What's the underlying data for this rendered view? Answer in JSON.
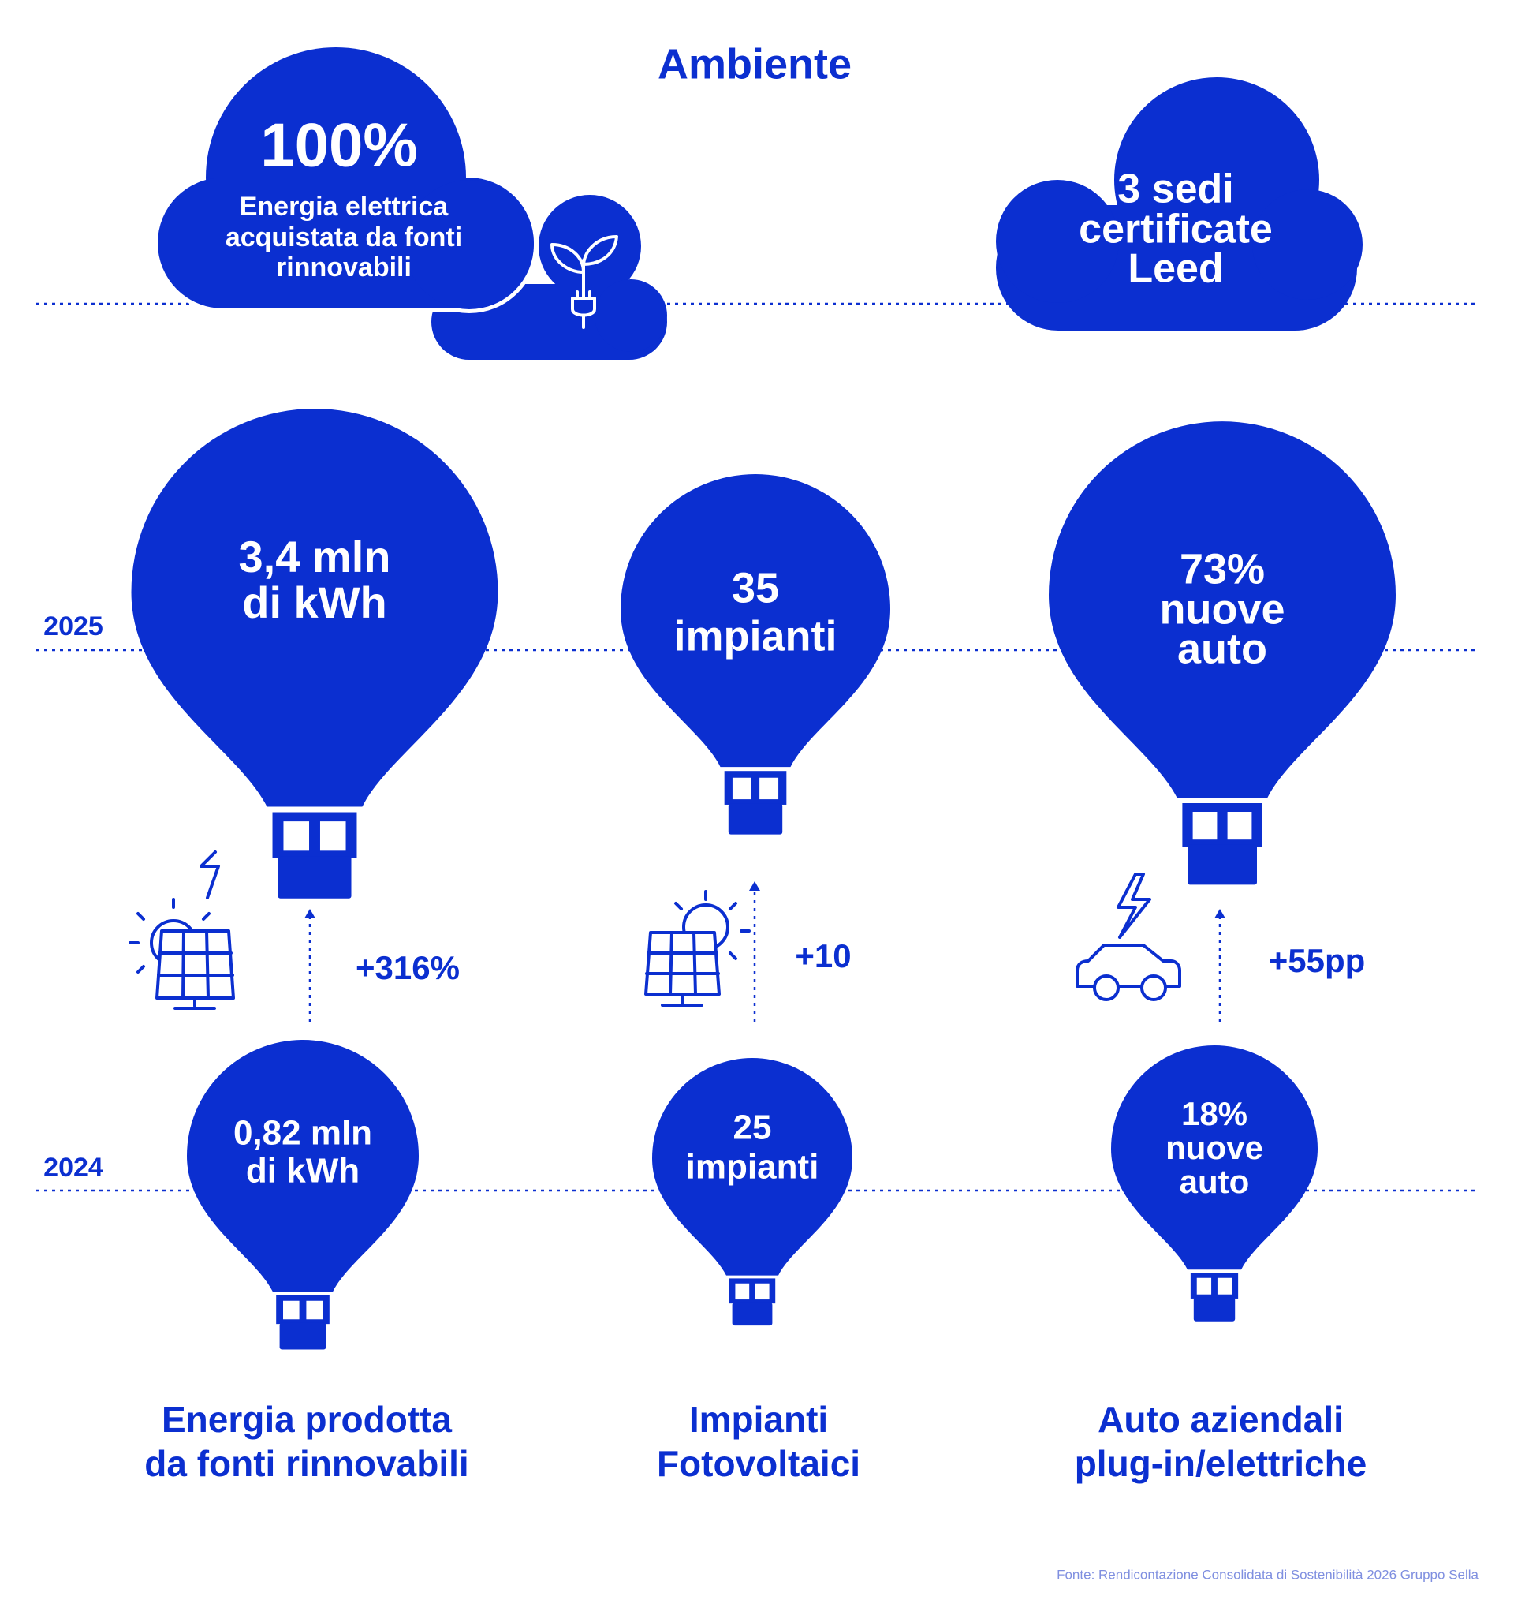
{
  "title": "Ambiente",
  "clouds": [
    {
      "headline": "100%",
      "lines": [
        "Energia elettrica",
        "acquistata da fonti",
        "rinnovabili"
      ]
    },
    {
      "lines": [
        "3 sedi",
        "certificate",
        "Leed"
      ]
    }
  ],
  "years": [
    "2025",
    "2024"
  ],
  "columns": [
    {
      "label": [
        "Energia prodotta",
        "da fonti rinnovabili"
      ],
      "value_2025": [
        "3,4 mln",
        "di kWh"
      ],
      "value_2024": [
        "0,82 mln",
        "di kWh"
      ],
      "change": "+316%"
    },
    {
      "label": [
        "Impianti",
        "Fotovoltaici"
      ],
      "value_2025": [
        "35",
        "impianti"
      ],
      "value_2024": [
        "25",
        "impianti"
      ],
      "change": "+10"
    },
    {
      "label": [
        "Auto aziendali",
        "plug-in/elettriche"
      ],
      "value_2025": [
        "73%",
        "nuove",
        "auto"
      ],
      "value_2024": [
        "18%",
        "nuove",
        "auto"
      ],
      "change": "+55pp"
    }
  ],
  "source": "Fonte: Rendicontazione Consolidata di Sostenibilità 2026 Gruppo Sella"
}
